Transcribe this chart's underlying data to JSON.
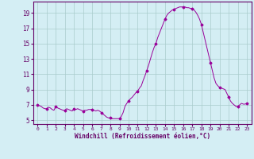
{
  "windchill_fine": [
    0,
    7.0,
    0.2,
    6.9,
    0.4,
    6.8,
    0.6,
    6.6,
    0.8,
    6.5,
    1.0,
    6.5,
    1.2,
    6.7,
    1.4,
    6.6,
    1.6,
    6.4,
    1.8,
    6.3,
    2.0,
    6.8,
    2.2,
    6.6,
    2.4,
    6.5,
    2.6,
    6.4,
    2.8,
    6.3,
    3.0,
    6.3,
    3.2,
    6.5,
    3.4,
    6.4,
    3.6,
    6.3,
    3.8,
    6.2,
    4.0,
    6.5,
    4.2,
    6.4,
    4.4,
    6.5,
    4.6,
    6.4,
    4.8,
    6.3,
    5.0,
    6.2,
    5.2,
    6.3,
    5.4,
    6.3,
    5.6,
    6.4,
    5.8,
    6.4,
    6.0,
    6.4,
    6.2,
    6.3,
    6.4,
    6.2,
    6.6,
    6.3,
    6.8,
    6.2,
    7.0,
    6.0,
    7.2,
    5.8,
    7.4,
    5.6,
    7.6,
    5.4,
    7.8,
    5.3,
    8.0,
    5.3,
    8.2,
    5.2,
    8.4,
    5.2,
    8.6,
    5.2,
    8.8,
    5.2,
    9.0,
    5.2,
    9.2,
    5.5,
    9.4,
    6.0,
    9.6,
    6.8,
    9.8,
    7.2,
    10.0,
    7.5,
    10.2,
    7.8,
    10.4,
    8.0,
    10.6,
    8.3,
    10.8,
    8.6,
    11.0,
    8.8,
    11.2,
    9.2,
    11.4,
    9.5,
    11.6,
    10.2,
    11.8,
    10.8,
    12.0,
    11.5,
    12.2,
    12.2,
    12.4,
    13.0,
    12.6,
    13.8,
    12.8,
    14.5,
    13.0,
    15.0,
    13.2,
    15.8,
    13.4,
    16.4,
    13.6,
    17.0,
    13.8,
    17.6,
    14.0,
    18.2,
    14.2,
    18.7,
    14.4,
    19.0,
    14.6,
    19.2,
    14.8,
    19.4,
    15.0,
    19.5,
    15.2,
    19.6,
    15.4,
    19.7,
    15.6,
    19.8,
    15.8,
    19.8,
    16.0,
    19.8,
    16.2,
    19.8,
    16.4,
    19.7,
    16.6,
    19.7,
    16.8,
    19.6,
    17.0,
    19.6,
    17.2,
    19.4,
    17.4,
    19.1,
    17.6,
    18.7,
    17.8,
    18.2,
    18.0,
    17.5,
    18.2,
    16.5,
    18.4,
    15.5,
    18.6,
    14.5,
    18.8,
    13.5,
    19.0,
    12.5,
    19.2,
    11.5,
    19.4,
    10.5,
    19.6,
    9.8,
    19.8,
    9.5,
    20.0,
    9.3,
    20.2,
    9.2,
    20.4,
    9.1,
    20.6,
    9.0,
    20.8,
    8.5,
    21.0,
    8.0,
    21.2,
    7.5,
    21.4,
    7.2,
    21.6,
    7.0,
    21.8,
    6.8,
    22.0,
    6.8,
    22.2,
    7.0,
    22.4,
    7.2,
    22.6,
    7.1,
    22.8,
    7.1,
    23.0,
    7.2
  ],
  "marker_hours": [
    0,
    1,
    2,
    3,
    4,
    5,
    6,
    7,
    8,
    9,
    10,
    11,
    12,
    13,
    14,
    15,
    16,
    17,
    18,
    19,
    20,
    21,
    22,
    23
  ],
  "marker_values": [
    7.0,
    6.5,
    6.8,
    6.3,
    6.5,
    6.2,
    6.4,
    6.0,
    5.3,
    5.2,
    7.5,
    8.8,
    11.5,
    15.0,
    18.2,
    19.5,
    19.8,
    19.6,
    17.5,
    12.5,
    9.3,
    8.0,
    6.8,
    7.2
  ],
  "line_color": "#990099",
  "marker_color": "#990099",
  "bg_color": "#d4eef4",
  "grid_color": "#aacccc",
  "axis_color": "#660066",
  "ylabel_values": [
    5,
    7,
    9,
    11,
    13,
    15,
    17,
    19
  ],
  "xlabel_values": [
    0,
    1,
    2,
    3,
    4,
    5,
    6,
    7,
    8,
    9,
    10,
    11,
    12,
    13,
    14,
    15,
    16,
    17,
    18,
    19,
    20,
    21,
    22,
    23
  ],
  "xlabel": "Windchill (Refroidissement éolien,°C)",
  "ylim": [
    4.5,
    20.5
  ],
  "xlim": [
    -0.5,
    23.5
  ]
}
